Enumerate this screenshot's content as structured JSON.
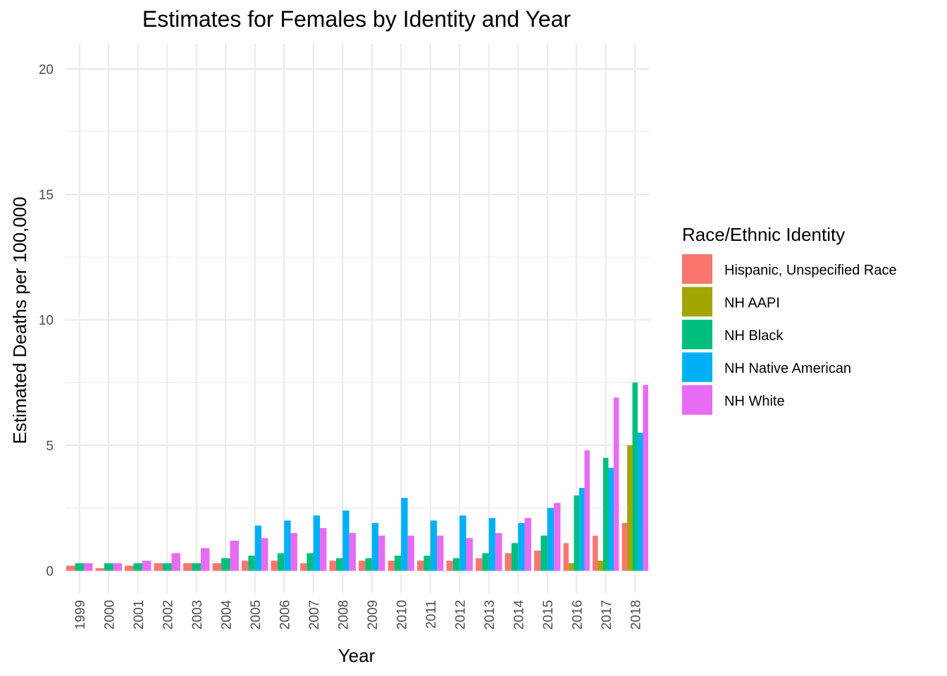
{
  "chart_data": {
    "type": "bar",
    "title": "Estimates for Females by Identity and Year",
    "xlabel": "Year",
    "ylabel": "Estimated Deaths per 100,000",
    "ylim": [
      -0.9,
      21
    ],
    "yticks": [
      0,
      5,
      10,
      15,
      20
    ],
    "grid": true,
    "legend_position": "right",
    "legend_title": "Race/Ethnic Identity",
    "categories": [
      "1999",
      "2000",
      "2001",
      "2002",
      "2003",
      "2004",
      "2005",
      "2006",
      "2007",
      "2008",
      "2009",
      "2010",
      "2011",
      "2012",
      "2013",
      "2014",
      "2015",
      "2016",
      "2017",
      "2018"
    ],
    "series": [
      {
        "name": "Hispanic, Unspecified Race",
        "color": "#F8766D",
        "values": [
          0.2,
          0.1,
          0.2,
          0.3,
          0.3,
          0.3,
          0.4,
          0.4,
          0.3,
          0.4,
          0.4,
          0.4,
          0.4,
          0.4,
          0.5,
          0.7,
          0.8,
          1.1,
          1.4,
          1.9
        ]
      },
      {
        "name": "NH AAPI",
        "color": "#A3A500",
        "values": [
          null,
          null,
          null,
          null,
          null,
          null,
          null,
          null,
          null,
          null,
          null,
          null,
          null,
          null,
          null,
          null,
          null,
          0.3,
          0.4,
          5.0
        ]
      },
      {
        "name": "NH Black",
        "color": "#00BF7D",
        "values": [
          0.3,
          0.3,
          0.3,
          0.3,
          0.3,
          0.5,
          0.6,
          0.7,
          0.7,
          0.5,
          0.5,
          0.6,
          0.6,
          0.5,
          0.7,
          1.1,
          1.4,
          3.0,
          4.5,
          7.5
        ]
      },
      {
        "name": "NH Native American",
        "color": "#00B0F6",
        "values": [
          null,
          null,
          null,
          null,
          null,
          null,
          1.8,
          2.0,
          2.2,
          2.4,
          1.9,
          2.9,
          2.0,
          2.2,
          2.1,
          1.9,
          2.5,
          3.3,
          4.1,
          5.5
        ]
      },
      {
        "name": "NH White",
        "color": "#E76BF3",
        "values": [
          0.3,
          0.3,
          0.4,
          0.7,
          0.9,
          1.2,
          1.3,
          1.5,
          1.7,
          1.5,
          1.4,
          1.4,
          1.4,
          1.3,
          1.5,
          2.1,
          2.7,
          4.8,
          6.9,
          7.4
        ]
      }
    ]
  }
}
